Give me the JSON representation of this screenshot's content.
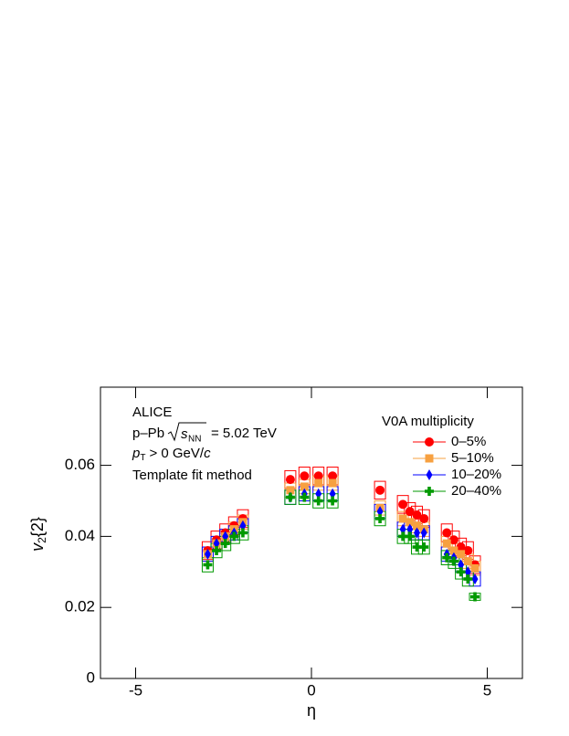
{
  "chart_data": {
    "type": "scatter",
    "annotations": {
      "experiment": "ALICE",
      "system": "p–Pb",
      "energy_symbol": "s",
      "energy_subscript": "NN",
      "energy": "= 5.02 TeV",
      "pt_symbol": "p",
      "pt_subscript": "T",
      "pt_cut": "> 0 GeV/",
      "pt_unit": "c",
      "method": "Template fit method"
    },
    "x_label": "η",
    "y_label": {
      "symbol": "v",
      "subscript": "2",
      "suffix": "{2}"
    },
    "legend_title": "V0A multiplicity",
    "x": [
      -2.95,
      -2.7,
      -2.45,
      -2.2,
      -1.95,
      -0.6,
      -0.2,
      0.2,
      0.6,
      1.95,
      2.6,
      2.8,
      3.0,
      3.2,
      3.85,
      4.05,
      4.25,
      4.45,
      4.65
    ],
    "series": [
      {
        "name": "0–5%",
        "color": "#ff0000",
        "marker": "circle",
        "values": [
          0.036,
          0.039,
          0.041,
          0.043,
          0.045,
          0.056,
          0.057,
          0.057,
          0.057,
          0.053,
          0.049,
          0.047,
          0.046,
          0.045,
          0.041,
          0.039,
          0.037,
          0.036,
          0.032
        ],
        "errors": [
          0.0025,
          0.0025,
          0.0025,
          0.0025,
          0.0025,
          0.0025,
          0.0025,
          0.0025,
          0.0025,
          0.0025,
          0.0025,
          0.0025,
          0.0025,
          0.0025,
          0.0025,
          0.0025,
          0.0025,
          0.0025,
          0.0025
        ]
      },
      {
        "name": "5–10%",
        "color": "#f7a040",
        "marker": "square",
        "values": [
          0.035,
          0.038,
          0.04,
          0.042,
          0.044,
          0.053,
          0.054,
          0.055,
          0.055,
          0.048,
          0.045,
          0.044,
          0.043,
          0.042,
          0.038,
          0.036,
          0.035,
          0.033,
          0.031
        ],
        "errors": [
          0.002,
          0.002,
          0.002,
          0.002,
          0.002,
          0.002,
          0.002,
          0.002,
          0.002,
          0.002,
          0.002,
          0.002,
          0.002,
          0.002,
          0.002,
          0.002,
          0.002,
          0.002,
          0.002
        ]
      },
      {
        "name": "10–20%",
        "color": "#0000ff",
        "marker": "diamond",
        "values": [
          0.035,
          0.038,
          0.04,
          0.041,
          0.043,
          0.051,
          0.052,
          0.052,
          0.052,
          0.047,
          0.042,
          0.042,
          0.041,
          0.041,
          0.035,
          0.034,
          0.032,
          0.03,
          0.028
        ],
        "errors": [
          0.002,
          0.002,
          0.002,
          0.002,
          0.002,
          0.002,
          0.002,
          0.002,
          0.002,
          0.002,
          0.002,
          0.002,
          0.002,
          0.002,
          0.002,
          0.002,
          0.002,
          0.002,
          0.002
        ]
      },
      {
        "name": "20–40%",
        "color": "#009900",
        "marker": "cross",
        "values": [
          0.032,
          0.036,
          0.038,
          0.04,
          0.041,
          0.051,
          0.051,
          0.05,
          0.05,
          0.045,
          0.04,
          0.04,
          0.037,
          0.037,
          0.034,
          0.033,
          0.03,
          0.028,
          0.023
        ],
        "errors": [
          0.002,
          0.002,
          0.002,
          0.002,
          0.002,
          0.002,
          0.002,
          0.002,
          0.002,
          0.002,
          0.002,
          0.002,
          0.002,
          0.002,
          0.002,
          0.002,
          0.002,
          0.002,
          0.001
        ]
      }
    ],
    "xlim": [
      -6,
      6
    ],
    "ylim": [
      0,
      0.082
    ],
    "xticks": [
      -5,
      0,
      5
    ],
    "yticks": [
      0,
      0.02,
      0.04,
      0.06
    ],
    "grid": false
  }
}
